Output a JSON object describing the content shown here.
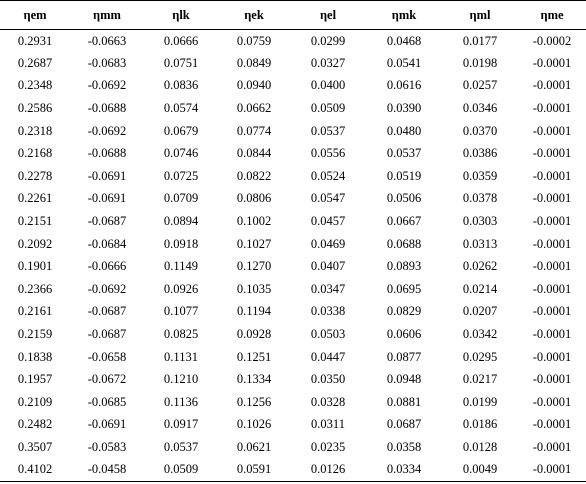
{
  "table": {
    "headers": [
      "ηem",
      "ηmm",
      "ηlk",
      "ηek",
      "ηel",
      "ηmk",
      "ηml",
      "ηme"
    ],
    "rows": [
      [
        "0.2931",
        "-0.0663",
        "0.0666",
        "0.0759",
        "0.0299",
        "0.0468",
        "0.0177",
        "-0.0002"
      ],
      [
        "0.2687",
        "-0.0683",
        "0.0751",
        "0.0849",
        "0.0327",
        "0.0541",
        "0.0198",
        "-0.0001"
      ],
      [
        "0.2348",
        "-0.0692",
        "0.0836",
        "0.0940",
        "0.0400",
        "0.0616",
        "0.0257",
        "-0.0001"
      ],
      [
        "0.2586",
        "-0.0688",
        "0.0574",
        "0.0662",
        "0.0509",
        "0.0390",
        "0.0346",
        "-0.0001"
      ],
      [
        "0.2318",
        "-0.0692",
        "0.0679",
        "0.0774",
        "0.0537",
        "0.0480",
        "0.0370",
        "-0.0001"
      ],
      [
        "0.2168",
        "-0.0688",
        "0.0746",
        "0.0844",
        "0.0556",
        "0.0537",
        "0.0386",
        "-0.0001"
      ],
      [
        "0.2278",
        "-0.0691",
        "0.0725",
        "0.0822",
        "0.0524",
        "0.0519",
        "0.0359",
        "-0.0001"
      ],
      [
        "0.2261",
        "-0.0691",
        "0.0709",
        "0.0806",
        "0.0547",
        "0.0506",
        "0.0378",
        "-0.0001"
      ],
      [
        "0.2151",
        "-0.0687",
        "0.0894",
        "0.1002",
        "0.0457",
        "0.0667",
        "0.0303",
        "-0.0001"
      ],
      [
        "0.2092",
        "-0.0684",
        "0.0918",
        "0.1027",
        "0.0469",
        "0.0688",
        "0.0313",
        "-0.0001"
      ],
      [
        "0.1901",
        "-0.0666",
        "0.1149",
        "0.1270",
        "0.0407",
        "0.0893",
        "0.0262",
        "-0.0001"
      ],
      [
        "0.2366",
        "-0.0692",
        "0.0926",
        "0.1035",
        "0.0347",
        "0.0695",
        "0.0214",
        "-0.0001"
      ],
      [
        "0.2161",
        "-0.0687",
        "0.1077",
        "0.1194",
        "0.0338",
        "0.0829",
        "0.0207",
        "-0.0001"
      ],
      [
        "0.2159",
        "-0.0687",
        "0.0825",
        "0.0928",
        "0.0503",
        "0.0606",
        "0.0342",
        "-0.0001"
      ],
      [
        "0.1838",
        "-0.0658",
        "0.1131",
        "0.1251",
        "0.0447",
        "0.0877",
        "0.0295",
        "-0.0001"
      ],
      [
        "0.1957",
        "-0.0672",
        "0.1210",
        "0.1334",
        "0.0350",
        "0.0948",
        "0.0217",
        "-0.0001"
      ],
      [
        "0.2109",
        "-0.0685",
        "0.1136",
        "0.1256",
        "0.0328",
        "0.0881",
        "0.0199",
        "-0.0001"
      ],
      [
        "0.2482",
        "-0.0691",
        "0.0917",
        "0.1026",
        "0.0311",
        "0.0687",
        "0.0186",
        "-0.0001"
      ],
      [
        "0.3507",
        "-0.0583",
        "0.0537",
        "0.0621",
        "0.0235",
        "0.0358",
        "0.0128",
        "-0.0001"
      ],
      [
        "0.4102",
        "-0.0458",
        "0.0509",
        "0.0591",
        "0.0126",
        "0.0334",
        "0.0049",
        "-0.0001"
      ]
    ]
  }
}
